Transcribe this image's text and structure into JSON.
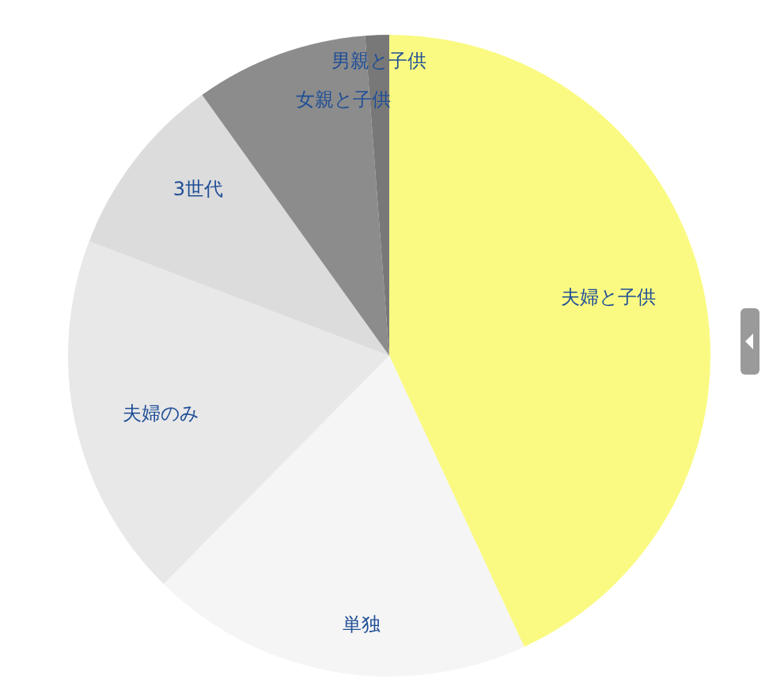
{
  "chart_data": {
    "type": "pie",
    "categories": [
      "夫婦と子供",
      "単独",
      "夫婦のみ",
      "3世代",
      "女親と子供",
      "男親と子供"
    ],
    "values": [
      43.1,
      19.3,
      18.4,
      9.3,
      8.7,
      1.2
    ],
    "colors": [
      "#fafa82",
      "#f5f5f5",
      "#e8e8e8",
      "#dcdcdc",
      "#8c8c8c",
      "#787878"
    ],
    "legend": false
  }
}
